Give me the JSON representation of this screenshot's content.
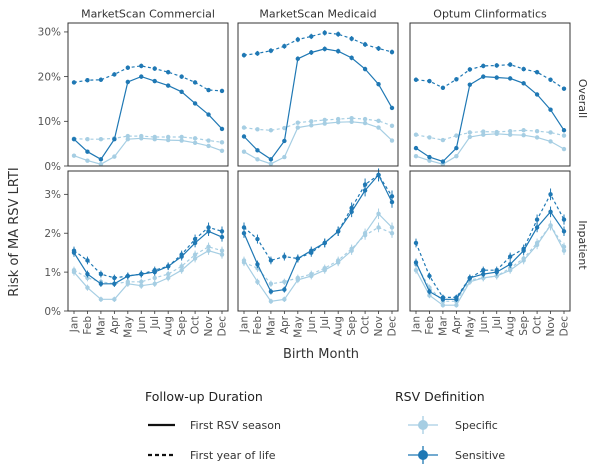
{
  "chart_data": {
    "type": "line",
    "y_axis_label": "Risk of MA RSV LRTI",
    "x_axis_label": "Birth Month",
    "months": [
      "Jan",
      "Feb",
      "Mar",
      "Apr",
      "May",
      "Jun",
      "Jul",
      "Aug",
      "Sep",
      "Oct",
      "Nov",
      "Dec"
    ],
    "columns": [
      "MarketScan Commercial",
      "MarketScan Medicaid",
      "Optum Clinformatics"
    ],
    "rows": [
      {
        "label": "Overall",
        "ylim": [
          0,
          32
        ],
        "ticks": [
          0,
          10,
          20,
          30
        ],
        "tick_labels": [
          "0%",
          "10%",
          "20%",
          "30%"
        ]
      },
      {
        "label": "Inpatient",
        "ylim": [
          0,
          3.6
        ],
        "ticks": [
          0,
          1,
          2,
          3
        ],
        "tick_labels": [
          "0%",
          "1%",
          "2%",
          "3%"
        ]
      }
    ],
    "legend": {
      "followup": {
        "title": "Follow-up Duration",
        "items": [
          {
            "label": "First RSV season",
            "dash": "solid"
          },
          {
            "label": "First year of life",
            "dash": "dashed"
          }
        ]
      },
      "definition": {
        "title": "RSV Definition",
        "items": [
          {
            "label": "Specific",
            "color": "#a6cee3"
          },
          {
            "label": "Sensitive",
            "color": "#1f78b4"
          }
        ]
      }
    },
    "colors": {
      "Specific": "#a6cee3",
      "Sensitive": "#1f78b4"
    },
    "panels": [
      {
        "row": 0,
        "col": 0,
        "series": [
          {
            "definition": "Sensitive",
            "followup": "First year of life",
            "values": [
              18.7,
              19.2,
              19.3,
              20.5,
              22.0,
              22.4,
              21.8,
              21.0,
              20.0,
              18.7,
              17.0,
              16.8
            ]
          },
          {
            "definition": "Sensitive",
            "followup": "First RSV season",
            "values": [
              6.0,
              3.2,
              1.5,
              6.0,
              18.8,
              20.0,
              19.0,
              18.0,
              16.6,
              14.0,
              11.5,
              8.3
            ]
          },
          {
            "definition": "Specific",
            "followup": "First year of life",
            "values": [
              6.1,
              6.0,
              6.0,
              6.2,
              6.7,
              6.7,
              6.5,
              6.5,
              6.5,
              6.2,
              5.7,
              5.3
            ]
          },
          {
            "definition": "Specific",
            "followup": "First RSV season",
            "values": [
              2.3,
              1.2,
              0.4,
              2.1,
              6.0,
              6.2,
              6.0,
              5.8,
              5.7,
              5.2,
              4.5,
              3.4
            ]
          }
        ]
      },
      {
        "row": 0,
        "col": 1,
        "series": [
          {
            "definition": "Sensitive",
            "followup": "First year of life",
            "values": [
              24.8,
              25.2,
              25.8,
              26.8,
              28.3,
              29.0,
              29.8,
              29.5,
              28.5,
              27.2,
              26.3,
              25.5
            ]
          },
          {
            "definition": "Sensitive",
            "followup": "First RSV season",
            "values": [
              6.6,
              3.5,
              1.5,
              5.6,
              24.0,
              25.4,
              26.2,
              25.7,
              24.2,
              21.7,
              18.3,
              13.0
            ]
          },
          {
            "definition": "Specific",
            "followup": "First year of life",
            "values": [
              8.6,
              8.2,
              8.0,
              8.5,
              9.7,
              10.0,
              10.3,
              10.5,
              10.7,
              10.5,
              10.1,
              9.0
            ]
          },
          {
            "definition": "Specific",
            "followup": "First RSV season",
            "values": [
              3.2,
              1.5,
              0.5,
              2.0,
              8.6,
              9.1,
              9.5,
              9.8,
              9.9,
              9.6,
              8.6,
              5.7
            ]
          }
        ]
      },
      {
        "row": 0,
        "col": 2,
        "series": [
          {
            "definition": "Sensitive",
            "followup": "First year of life",
            "values": [
              19.3,
              19.0,
              17.5,
              19.4,
              21.6,
              22.4,
              22.5,
              22.7,
              21.7,
              21.0,
              19.3,
              17.3
            ]
          },
          {
            "definition": "Sensitive",
            "followup": "First RSV season",
            "values": [
              4.0,
              2.0,
              1.0,
              4.0,
              18.2,
              20.0,
              19.8,
              19.6,
              18.5,
              16.0,
              12.6,
              8.0
            ]
          },
          {
            "definition": "Specific",
            "followup": "First year of life",
            "values": [
              7.0,
              6.4,
              5.8,
              6.8,
              7.5,
              7.7,
              7.6,
              7.8,
              8.0,
              7.8,
              7.5,
              6.8
            ]
          },
          {
            "definition": "Specific",
            "followup": "First RSV season",
            "values": [
              2.2,
              1.2,
              0.4,
              2.2,
              6.5,
              7.0,
              7.2,
              7.0,
              6.9,
              6.4,
              5.5,
              3.8
            ]
          }
        ]
      },
      {
        "row": 1,
        "col": 0,
        "series": [
          {
            "definition": "Sensitive",
            "followup": "First year of life",
            "values": [
              1.55,
              1.3,
              0.95,
              0.85,
              0.9,
              0.95,
              1.05,
              1.15,
              1.45,
              1.85,
              2.15,
              2.05
            ]
          },
          {
            "definition": "Sensitive",
            "followup": "First RSV season",
            "values": [
              1.5,
              0.95,
              0.7,
              0.7,
              0.9,
              0.95,
              1.0,
              1.15,
              1.4,
              1.75,
              2.05,
              1.9
            ]
          },
          {
            "definition": "Specific",
            "followup": "First year of life",
            "values": [
              1.05,
              0.85,
              0.75,
              0.7,
              0.75,
              0.75,
              0.85,
              0.95,
              1.15,
              1.45,
              1.65,
              1.55
            ]
          },
          {
            "definition": "Specific",
            "followup": "First RSV season",
            "values": [
              1.0,
              0.6,
              0.3,
              0.3,
              0.7,
              0.65,
              0.7,
              0.85,
              1.05,
              1.35,
              1.55,
              1.45
            ]
          }
        ]
      },
      {
        "row": 1,
        "col": 1,
        "series": [
          {
            "definition": "Sensitive",
            "followup": "First year of life",
            "values": [
              2.15,
              1.85,
              1.3,
              1.4,
              1.35,
              1.5,
              1.75,
              2.05,
              2.65,
              3.25,
              3.5,
              2.95
            ]
          },
          {
            "definition": "Sensitive",
            "followup": "First RSV season",
            "values": [
              2.0,
              1.2,
              0.5,
              0.55,
              1.35,
              1.55,
              1.75,
              2.05,
              2.55,
              3.1,
              3.5,
              2.8
            ]
          },
          {
            "definition": "Specific",
            "followup": "First year of life",
            "values": [
              1.25,
              1.1,
              0.7,
              0.75,
              0.85,
              0.95,
              1.1,
              1.3,
              1.6,
              1.95,
              2.15,
              2.0
            ]
          },
          {
            "definition": "Specific",
            "followup": "First RSV season",
            "values": [
              1.3,
              0.75,
              0.25,
              0.3,
              0.8,
              0.9,
              1.05,
              1.25,
              1.55,
              2.0,
              2.5,
              2.15
            ]
          }
        ]
      },
      {
        "row": 1,
        "col": 2,
        "series": [
          {
            "definition": "Sensitive",
            "followup": "First year of life",
            "values": [
              1.75,
              0.9,
              0.35,
              0.35,
              0.85,
              1.05,
              1.05,
              1.4,
              1.6,
              2.35,
              3.0,
              2.35
            ]
          },
          {
            "definition": "Sensitive",
            "followup": "First RSV season",
            "values": [
              1.25,
              0.5,
              0.3,
              0.3,
              0.85,
              0.95,
              1.0,
              1.2,
              1.55,
              2.15,
              2.55,
              2.05
            ]
          },
          {
            "definition": "Specific",
            "followup": "First year of life",
            "values": [
              1.2,
              0.6,
              0.25,
              0.25,
              0.8,
              0.85,
              0.9,
              1.1,
              1.35,
              1.75,
              2.2,
              1.65
            ]
          },
          {
            "definition": "Specific",
            "followup": "First RSV season",
            "values": [
              1.05,
              0.4,
              0.15,
              0.15,
              0.75,
              0.85,
              0.9,
              1.05,
              1.3,
              1.7,
              2.2,
              1.55
            ]
          }
        ]
      }
    ]
  }
}
